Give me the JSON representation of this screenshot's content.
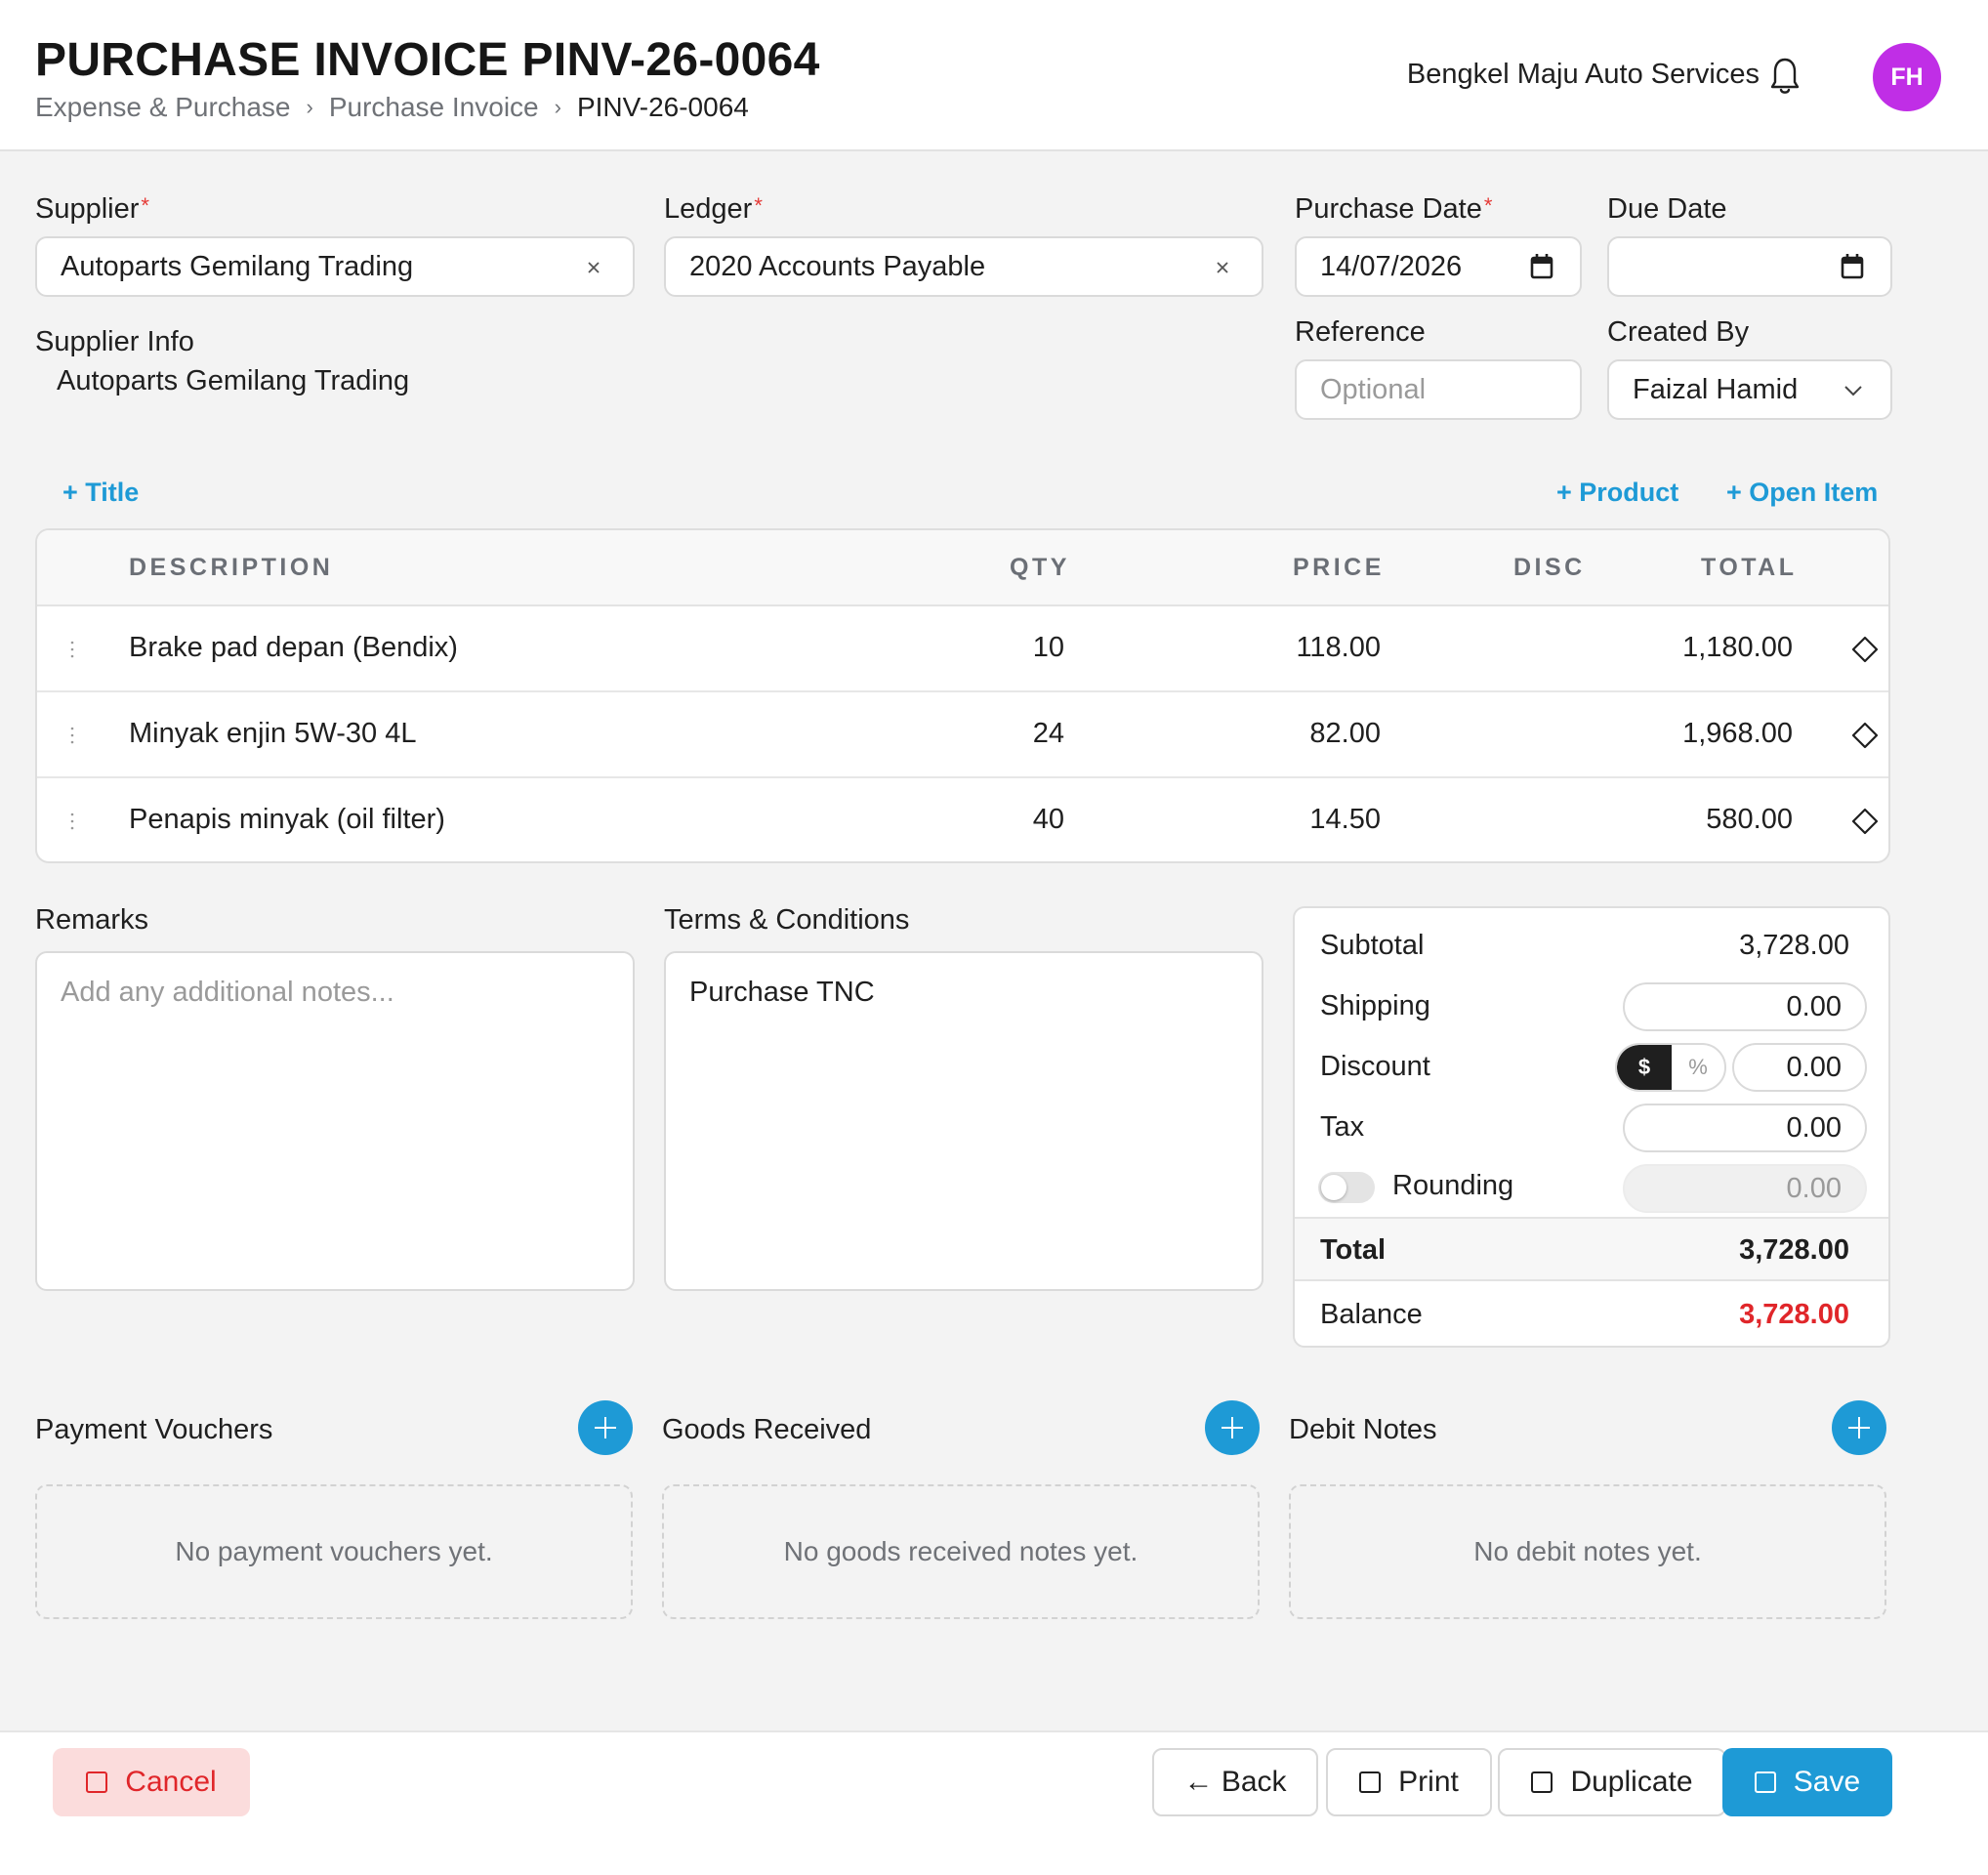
{
  "header": {
    "title": "PURCHASE INVOICE PINV-26-0064",
    "breadcrumb": [
      "Expense & Purchase",
      "Purchase Invoice",
      "PINV-26-0064"
    ],
    "company": "Bengkel Maju Auto Services",
    "avatar_initials": "FH",
    "avatar_color": "#c02ee6"
  },
  "form": {
    "supplier_label": "Supplier",
    "supplier_value": "Autoparts Gemilang Trading",
    "ledger_label": "Ledger",
    "ledger_value": "2020 Accounts Payable",
    "purchase_date_label": "Purchase Date",
    "purchase_date_value": "14/07/2026",
    "due_date_label": "Due Date",
    "due_date_value": "",
    "supplier_info_label": "Supplier Info",
    "supplier_info_value": "Autoparts Gemilang Trading",
    "reference_label": "Reference",
    "reference_placeholder": "Optional",
    "created_by_label": "Created By",
    "created_by_value": "Faizal Hamid",
    "required_mark": "*"
  },
  "item_actions": {
    "add_title": "+ Title",
    "add_product": "+ Product",
    "add_open_item": "+ Open Item"
  },
  "items_table": {
    "columns": [
      "DESCRIPTION",
      "QTY",
      "PRICE",
      "DISC",
      "TOTAL"
    ],
    "rows": [
      {
        "description": "Brake pad depan (Bendix)",
        "qty": "10",
        "price": "118.00",
        "disc": "",
        "total": "1,180.00"
      },
      {
        "description": "Minyak enjin 5W-30 4L",
        "qty": "24",
        "price": "82.00",
        "disc": "",
        "total": "1,968.00"
      },
      {
        "description": "Penapis minyak (oil filter)",
        "qty": "40",
        "price": "14.50",
        "disc": "",
        "total": "580.00"
      }
    ]
  },
  "remarks": {
    "label": "Remarks",
    "placeholder": "Add any additional notes..."
  },
  "terms": {
    "label": "Terms & Conditions",
    "value": "Purchase TNC"
  },
  "summary": {
    "subtotal_label": "Subtotal",
    "subtotal_value": "3,728.00",
    "shipping_label": "Shipping",
    "shipping_value": "0.00",
    "discount_label": "Discount",
    "discount_mode_amount": "$",
    "discount_mode_percent": "%",
    "discount_value": "0.00",
    "tax_label": "Tax",
    "tax_value": "0.00",
    "rounding_label": "Rounding",
    "rounding_value": "0.00",
    "total_label": "Total",
    "total_value": "3,728.00",
    "balance_label": "Balance",
    "balance_value": "3,728.00",
    "balance_color": "#e0262a"
  },
  "sections": [
    {
      "title": "Payment Vouchers",
      "empty": "No payment vouchers yet."
    },
    {
      "title": "Goods Received",
      "empty": "No goods received notes yet."
    },
    {
      "title": "Debit Notes",
      "empty": "No debit notes yet."
    }
  ],
  "footer": {
    "cancel": "Cancel",
    "back": "← Back",
    "print": "Print",
    "duplicate": "Duplicate",
    "save": "Save"
  },
  "colors": {
    "accent": "#1e9ad6",
    "danger": "#e0262a"
  }
}
